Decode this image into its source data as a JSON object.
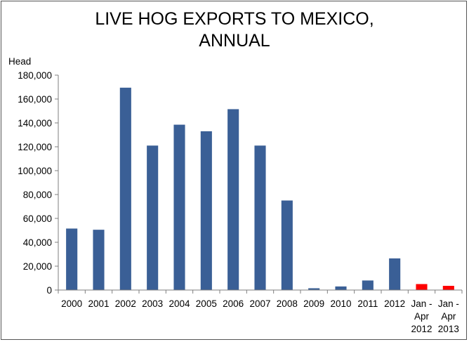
{
  "chart_data": {
    "type": "bar",
    "title_lines": [
      "LIVE HOG EXPORTS TO MEXICO,",
      "ANNUAL"
    ],
    "ylabel": "Head",
    "xlabel": "",
    "ylim": [
      0,
      180000
    ],
    "yticks": [
      "0",
      "20,000",
      "40,000",
      "60,000",
      "80,000",
      "100,000",
      "120,000",
      "140,000",
      "160,000",
      "180,000"
    ],
    "ytick_values": [
      0,
      20000,
      40000,
      60000,
      80000,
      100000,
      120000,
      140000,
      160000,
      180000
    ],
    "grid": false,
    "legend": "none",
    "categories": [
      [
        "2000"
      ],
      [
        "2001"
      ],
      [
        "2002"
      ],
      [
        "2003"
      ],
      [
        "2004"
      ],
      [
        "2005"
      ],
      [
        "2006"
      ],
      [
        "2007"
      ],
      [
        "2008"
      ],
      [
        "2009"
      ],
      [
        "2010"
      ],
      [
        "2011"
      ],
      [
        "2012"
      ],
      [
        "Jan -",
        "Apr",
        "2012"
      ],
      [
        "Jan -",
        "Apr",
        "2013"
      ]
    ],
    "values": [
      51500,
      50500,
      169500,
      121000,
      138500,
      133000,
      151500,
      121000,
      75000,
      1500,
      3000,
      8000,
      26500,
      5000,
      3500
    ],
    "colors": [
      "#3a5f96",
      "#3a5f96",
      "#3a5f96",
      "#3a5f96",
      "#3a5f96",
      "#3a5f96",
      "#3a5f96",
      "#3a5f96",
      "#3a5f96",
      "#3a5f96",
      "#3a5f96",
      "#3a5f96",
      "#3a5f96",
      "#ff0000",
      "#ff0000"
    ],
    "colors_meaning": {
      "annual": "#3a5f96",
      "partial_year": "#ff0000"
    }
  }
}
